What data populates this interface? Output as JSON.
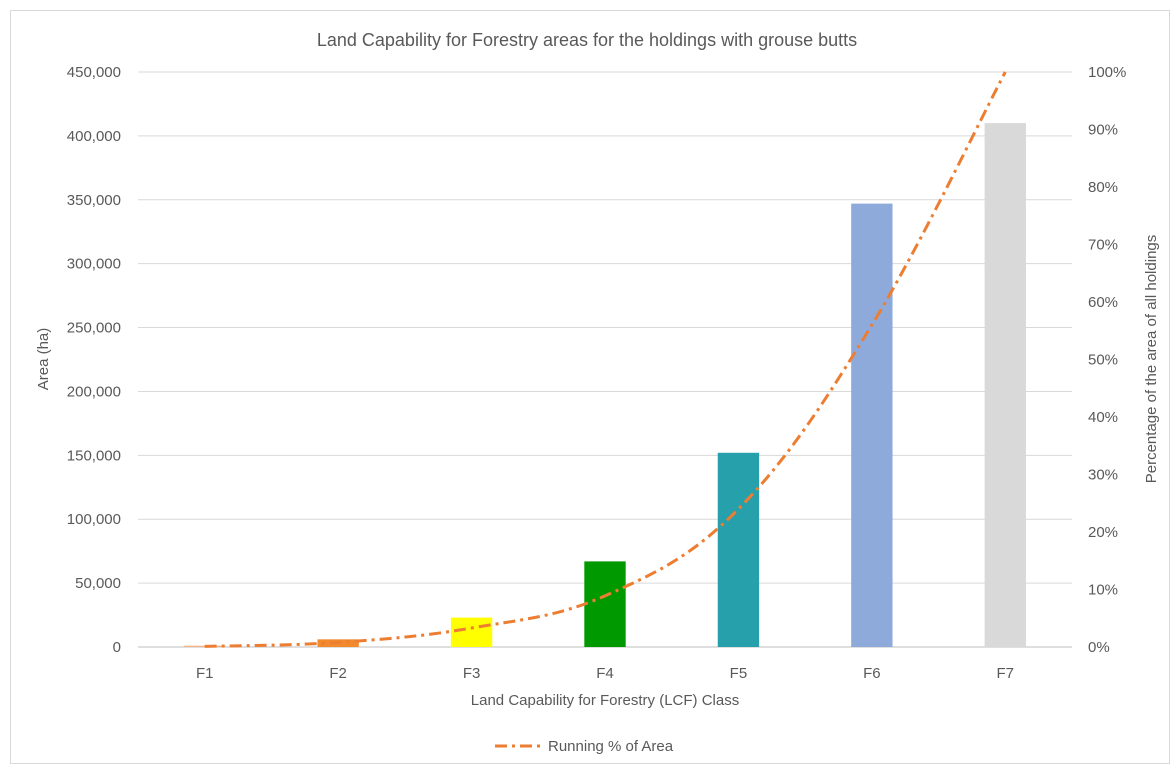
{
  "chart_data": {
    "type": "bar",
    "title": "Land Capability for Forestry areas for the holdings with grouse butts",
    "xlabel": "Land Capability for Forestry (LCF) Class",
    "ylabel": "Area (ha)",
    "y2label": "Percentage of the area of all holdings",
    "categories": [
      "F1",
      "F2",
      "F3",
      "F4",
      "F5",
      "F6",
      "F7"
    ],
    "series": [
      {
        "type": "bar",
        "values": [
          1000,
          6000,
          23000,
          67000,
          152000,
          347000,
          410000
        ],
        "colors": [
          "#f4b183",
          "#f08a2c",
          "#ffff00",
          "#009900",
          "#26a0ab",
          "#8eaadb",
          "#d9d9d9"
        ]
      },
      {
        "name": "Running % of Area",
        "type": "line",
        "axis": "secondary",
        "style": "dash-dot",
        "color": "#ed7d31",
        "values": [
          0.1,
          0.8,
          3.3,
          8.9,
          24,
          56,
          100
        ]
      }
    ],
    "ylim": [
      0,
      450000
    ],
    "y2lim": [
      0,
      100
    ],
    "yticks": [
      "0",
      "50,000",
      "100,000",
      "150,000",
      "200,000",
      "250,000",
      "300,000",
      "350,000",
      "400,000",
      "450,000"
    ],
    "y2ticks": [
      "0%",
      "10%",
      "20%",
      "30%",
      "40%",
      "50%",
      "60%",
      "70%",
      "80%",
      "90%",
      "100%"
    ],
    "grid": true,
    "legend": "bottom"
  }
}
